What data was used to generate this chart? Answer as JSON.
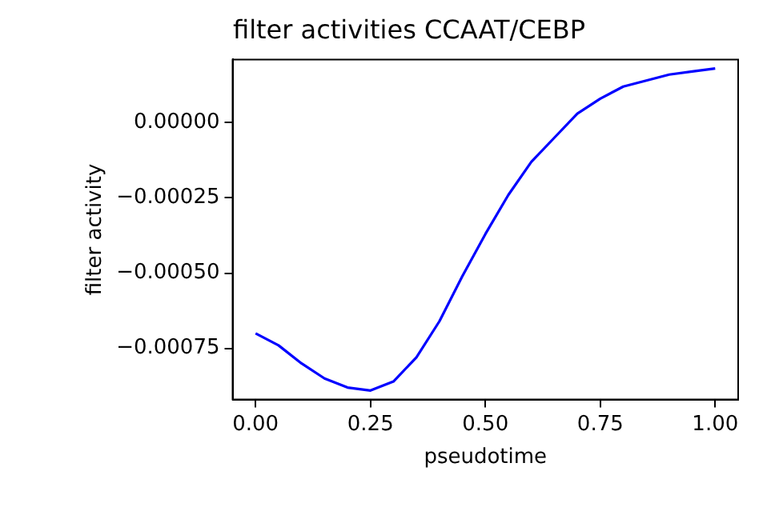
{
  "chart_data": {
    "type": "line",
    "title": "filter activities CCAAT/CEBP",
    "xlabel": "pseudotime",
    "ylabel": "filter activity",
    "x": [
      0,
      0.05,
      0.1,
      0.15,
      0.2,
      0.25,
      0.3,
      0.35,
      0.4,
      0.45,
      0.5,
      0.55,
      0.6,
      0.65,
      0.7,
      0.75,
      0.8,
      0.85,
      0.9,
      0.95,
      1.0
    ],
    "series": [
      {
        "color": "#0000ff",
        "values": [
          -0.0007,
          -0.00074,
          -0.0008,
          -0.00085,
          -0.00088,
          -0.00089,
          -0.00086,
          -0.00078,
          -0.00066,
          -0.00051,
          -0.00037,
          -0.00024,
          -0.00013,
          -5e-05,
          3e-05,
          8e-05,
          0.00012,
          0.00014,
          0.00016,
          0.00017,
          0.00018
        ]
      }
    ],
    "xlim": [
      -0.05,
      1.05
    ],
    "ylim": [
      -0.00092,
      0.00021
    ],
    "xticks": [
      {
        "value": 0,
        "label": "0.00"
      },
      {
        "value": 0.25,
        "label": "0.25"
      },
      {
        "value": 0.5,
        "label": "0.50"
      },
      {
        "value": 0.75,
        "label": "0.75"
      },
      {
        "value": 1,
        "label": "1.00"
      }
    ],
    "yticks": [
      {
        "value": -0.00075,
        "label": "−0.00075"
      },
      {
        "value": -0.0005,
        "label": "−0.00050"
      },
      {
        "value": -0.00025,
        "label": "−0.00025"
      },
      {
        "value": 0,
        "label": "0.00000"
      }
    ],
    "grid": false,
    "legend": false,
    "marker": "none",
    "line_style": "solid"
  }
}
